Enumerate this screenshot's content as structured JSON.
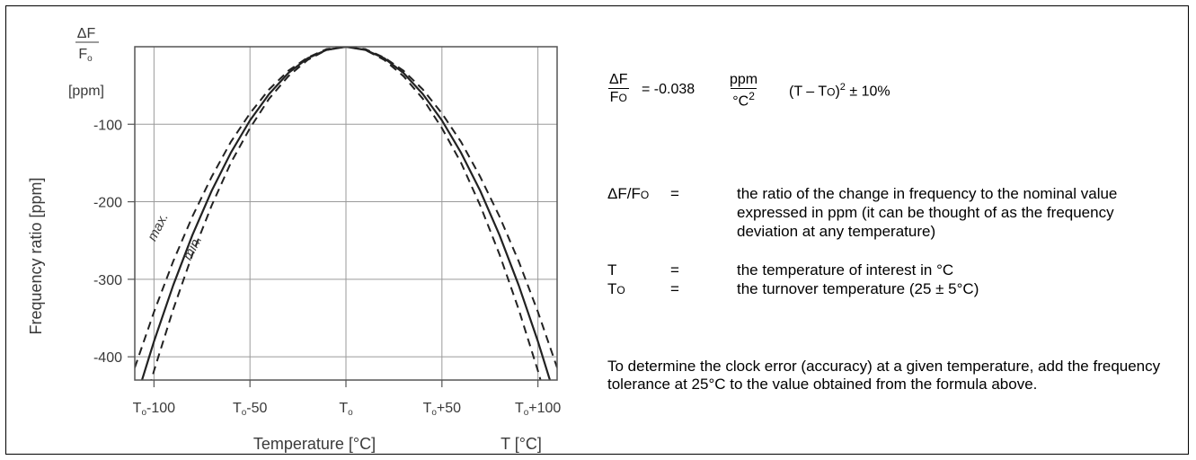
{
  "chart_data": {
    "type": "line",
    "title": "",
    "ylabel": "Frequency ratio [ppm]",
    "xlabel": "Temperature [°C]",
    "x_axis_end_label": "T [°C]",
    "y_unit_label": {
      "numerator": "ΔF",
      "denominator": "F",
      "denominator_sub": "o",
      "unit": "[ppm]"
    },
    "xlim": [
      -110,
      110
    ],
    "ylim": [
      -430,
      0
    ],
    "x_ticks": [
      {
        "value": -100,
        "label": "T",
        "sub": "o",
        "suffix": "-100"
      },
      {
        "value": -50,
        "label": "T",
        "sub": "o",
        "suffix": "-50"
      },
      {
        "value": 0,
        "label": "T",
        "sub": "o",
        "suffix": ""
      },
      {
        "value": 50,
        "label": "T",
        "sub": "o",
        "suffix": "+50"
      },
      {
        "value": 100,
        "label": "T",
        "sub": "o",
        "suffix": "+100"
      }
    ],
    "y_ticks": [
      {
        "value": -100,
        "label": "-100"
      },
      {
        "value": -200,
        "label": "-200"
      },
      {
        "value": -300,
        "label": "-300"
      },
      {
        "value": -400,
        "label": "-400"
      }
    ],
    "grid": true,
    "series": [
      {
        "name": "",
        "style": "solid",
        "x": [
          -110,
          -100,
          -90,
          -80,
          -70,
          -60,
          -50,
          -40,
          -30,
          -20,
          -10,
          0,
          10,
          20,
          30,
          40,
          50,
          60,
          70,
          80,
          90,
          100,
          110
        ],
        "y": [
          -460,
          -380,
          -308,
          -243,
          -186,
          -137,
          -95,
          -61,
          -34,
          -15,
          -4,
          0,
          -4,
          -15,
          -34,
          -61,
          -95,
          -137,
          -186,
          -243,
          -308,
          -380,
          -460
        ]
      },
      {
        "name": "",
        "style": "dashed",
        "x": [
          -110,
          -100,
          -90,
          -80,
          -70,
          -60,
          -50,
          -40,
          -30,
          -20,
          -10,
          0,
          10,
          20,
          30,
          40,
          50,
          60,
          70,
          80,
          90,
          100,
          110
        ],
        "y": [
          -414,
          -342,
          -277,
          -219,
          -168,
          -123,
          -86,
          -55,
          -31,
          -14,
          -3,
          0,
          -3,
          -14,
          -31,
          -55,
          -86,
          -123,
          -168,
          -219,
          -277,
          -342,
          -414
        ]
      },
      {
        "name": "",
        "style": "dashed",
        "x": [
          -110,
          -100,
          -90,
          -80,
          -70,
          -60,
          -50,
          -40,
          -30,
          -20,
          -10,
          0,
          10,
          20,
          30,
          40,
          50,
          60,
          70,
          80,
          90,
          100,
          110
        ],
        "y": [
          -506,
          -418,
          -339,
          -268,
          -205,
          -150,
          -105,
          -67,
          -38,
          -17,
          -4,
          0,
          -4,
          -17,
          -38,
          -67,
          -105,
          -150,
          -205,
          -268,
          -339,
          -418,
          -506
        ]
      }
    ],
    "annotations": [
      {
        "text": "max.",
        "x": -96,
        "y": -235
      },
      {
        "text": "min.",
        "x": -78,
        "y": -262
      }
    ]
  },
  "formula": {
    "lhs_num": "ΔF",
    "lhs_den": "F",
    "lhs_den_sub": "O",
    "equals_coef": "= -0.038",
    "unit_num": "ppm",
    "unit_den": "°C",
    "unit_den_sup": "2",
    "tail_open": "(T – T",
    "tail_sub": "O",
    "tail_close": ")",
    "tail_sup": "2",
    "tail_tol": " ± 10%"
  },
  "definitions": [
    {
      "symbol": "ΔF/F",
      "symbol_sub": "O",
      "eq": "=",
      "text": "the ratio of the change in frequency to the nominal value expressed in ppm (it can be thought of as the frequency deviation at any temperature)"
    },
    {
      "symbol": "T",
      "symbol_sub": "",
      "eq": "=",
      "text": "the temperature of interest in °C"
    },
    {
      "symbol": "T",
      "symbol_sub": "O",
      "eq": "=",
      "text": "the turnover temperature (25 ± 5°C)"
    }
  ],
  "note": "To determine the clock error (accuracy) at a given temperature, add the frequency tolerance at 25°C to the value obtained from the formula above."
}
